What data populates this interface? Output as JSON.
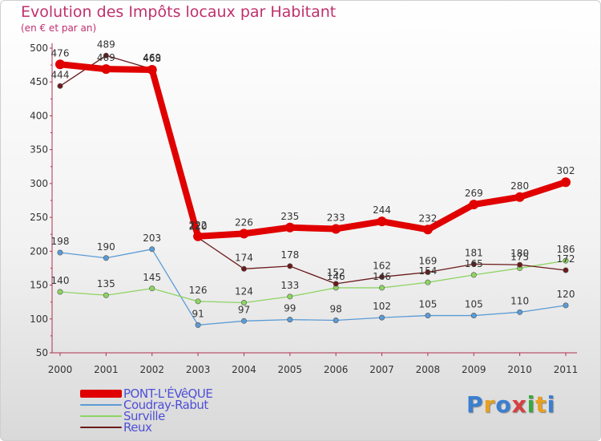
{
  "title": "Evolution des Impôts locaux par Habitant",
  "subtitle": "(en € et par an)",
  "brand": "Proxiti",
  "brand_colors": [
    "#3a7fd1",
    "#e8a020",
    "#3a7fd1",
    "#d64040",
    "#3aa840",
    "#e8a020",
    "#3a7fd1"
  ],
  "chart_data": {
    "type": "line",
    "title": "Evolution des Impôts locaux par Habitant",
    "ylabel": "(en € et par an)",
    "xlabel": "",
    "categories": [
      "2000",
      "2001",
      "2002",
      "2003",
      "2004",
      "2005",
      "2006",
      "2007",
      "2008",
      "2009",
      "2010",
      "2011"
    ],
    "ylim": [
      50,
      500
    ],
    "yticks": [
      50,
      100,
      150,
      200,
      250,
      300,
      350,
      400,
      450,
      500
    ],
    "grid": false,
    "legend_position": "bottom-left",
    "series": [
      {
        "name": "PONT-L'ÉVêQUE",
        "color": "#e00000",
        "values": [
          476,
          469,
          468,
          222,
          226,
          235,
          233,
          244,
          232,
          269,
          280,
          302
        ]
      },
      {
        "name": "Coudray-Rabut",
        "color": "#5b9bd5",
        "values": [
          198,
          190,
          203,
          91,
          97,
          99,
          98,
          102,
          105,
          105,
          110,
          120
        ]
      },
      {
        "name": "Surville",
        "color": "#8ed463",
        "values": [
          140,
          135,
          145,
          126,
          124,
          133,
          146,
          146,
          154,
          165,
          175,
          186
        ]
      },
      {
        "name": "Reux",
        "color": "#6b1a1a",
        "values": [
          444,
          489,
          469,
          220,
          174,
          178,
          152,
          162,
          169,
          181,
          180,
          172
        ]
      }
    ]
  }
}
